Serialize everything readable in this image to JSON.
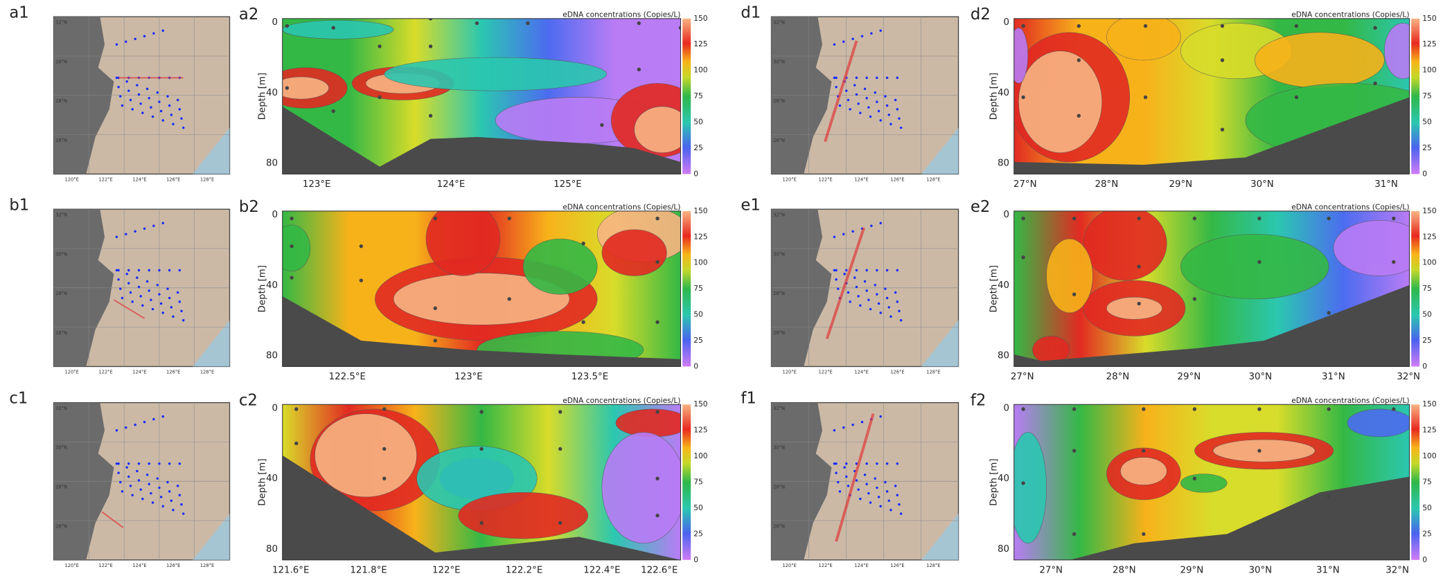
{
  "colorbar": {
    "title": "eDNA concentrations (Copies/L)",
    "ticks": [
      "0",
      "25",
      "50",
      "75",
      "100",
      "125",
      "150"
    ]
  },
  "map_axes": {
    "lat_ticks": [
      "32°N",
      "30°N",
      "28°N",
      "26°N"
    ],
    "lon_ticks": [
      "120°E",
      "122°E",
      "124°E",
      "126°E",
      "128°E"
    ]
  },
  "maps": [
    {
      "label": "a1"
    },
    {
      "label": "b1"
    },
    {
      "label": "c1"
    },
    {
      "label": "d1"
    },
    {
      "label": "e1"
    },
    {
      "label": "f1"
    }
  ],
  "sections": [
    {
      "label": "a2",
      "ylabel": "Depth [m]",
      "yticks": [
        "0",
        "40",
        "80"
      ],
      "xticks": [
        "123°E",
        "124°E",
        "125°E"
      ]
    },
    {
      "label": "b2",
      "ylabel": "Depth [m]",
      "yticks": [
        "0",
        "40",
        "80"
      ],
      "xticks": [
        "122.5°E",
        "123°E",
        "123.5°E"
      ]
    },
    {
      "label": "c2",
      "ylabel": "Depth [m]",
      "yticks": [
        "0",
        "40",
        "80"
      ],
      "xticks": [
        "121.6°E",
        "121.8°E",
        "122°E",
        "122.2°E",
        "122.4°E",
        "122.6°E"
      ]
    },
    {
      "label": "d2",
      "ylabel": "Depth [m]",
      "yticks": [
        "0",
        "40",
        "80"
      ],
      "xticks": [
        "27°N",
        "28°N",
        "29°N",
        "30°N",
        "31°N"
      ]
    },
    {
      "label": "e2",
      "ylabel": "Depth [m]",
      "yticks": [
        "0",
        "40",
        "80"
      ],
      "xticks": [
        "27°N",
        "28°N",
        "29°N",
        "30°N",
        "31°N",
        "32°N"
      ]
    },
    {
      "label": "f2",
      "ylabel": "Depth [m]",
      "yticks": [
        "0",
        "40",
        "80"
      ],
      "xticks": [
        "27°N",
        "28°N",
        "29°N",
        "30°N",
        "31°N",
        "32°N"
      ]
    }
  ]
}
